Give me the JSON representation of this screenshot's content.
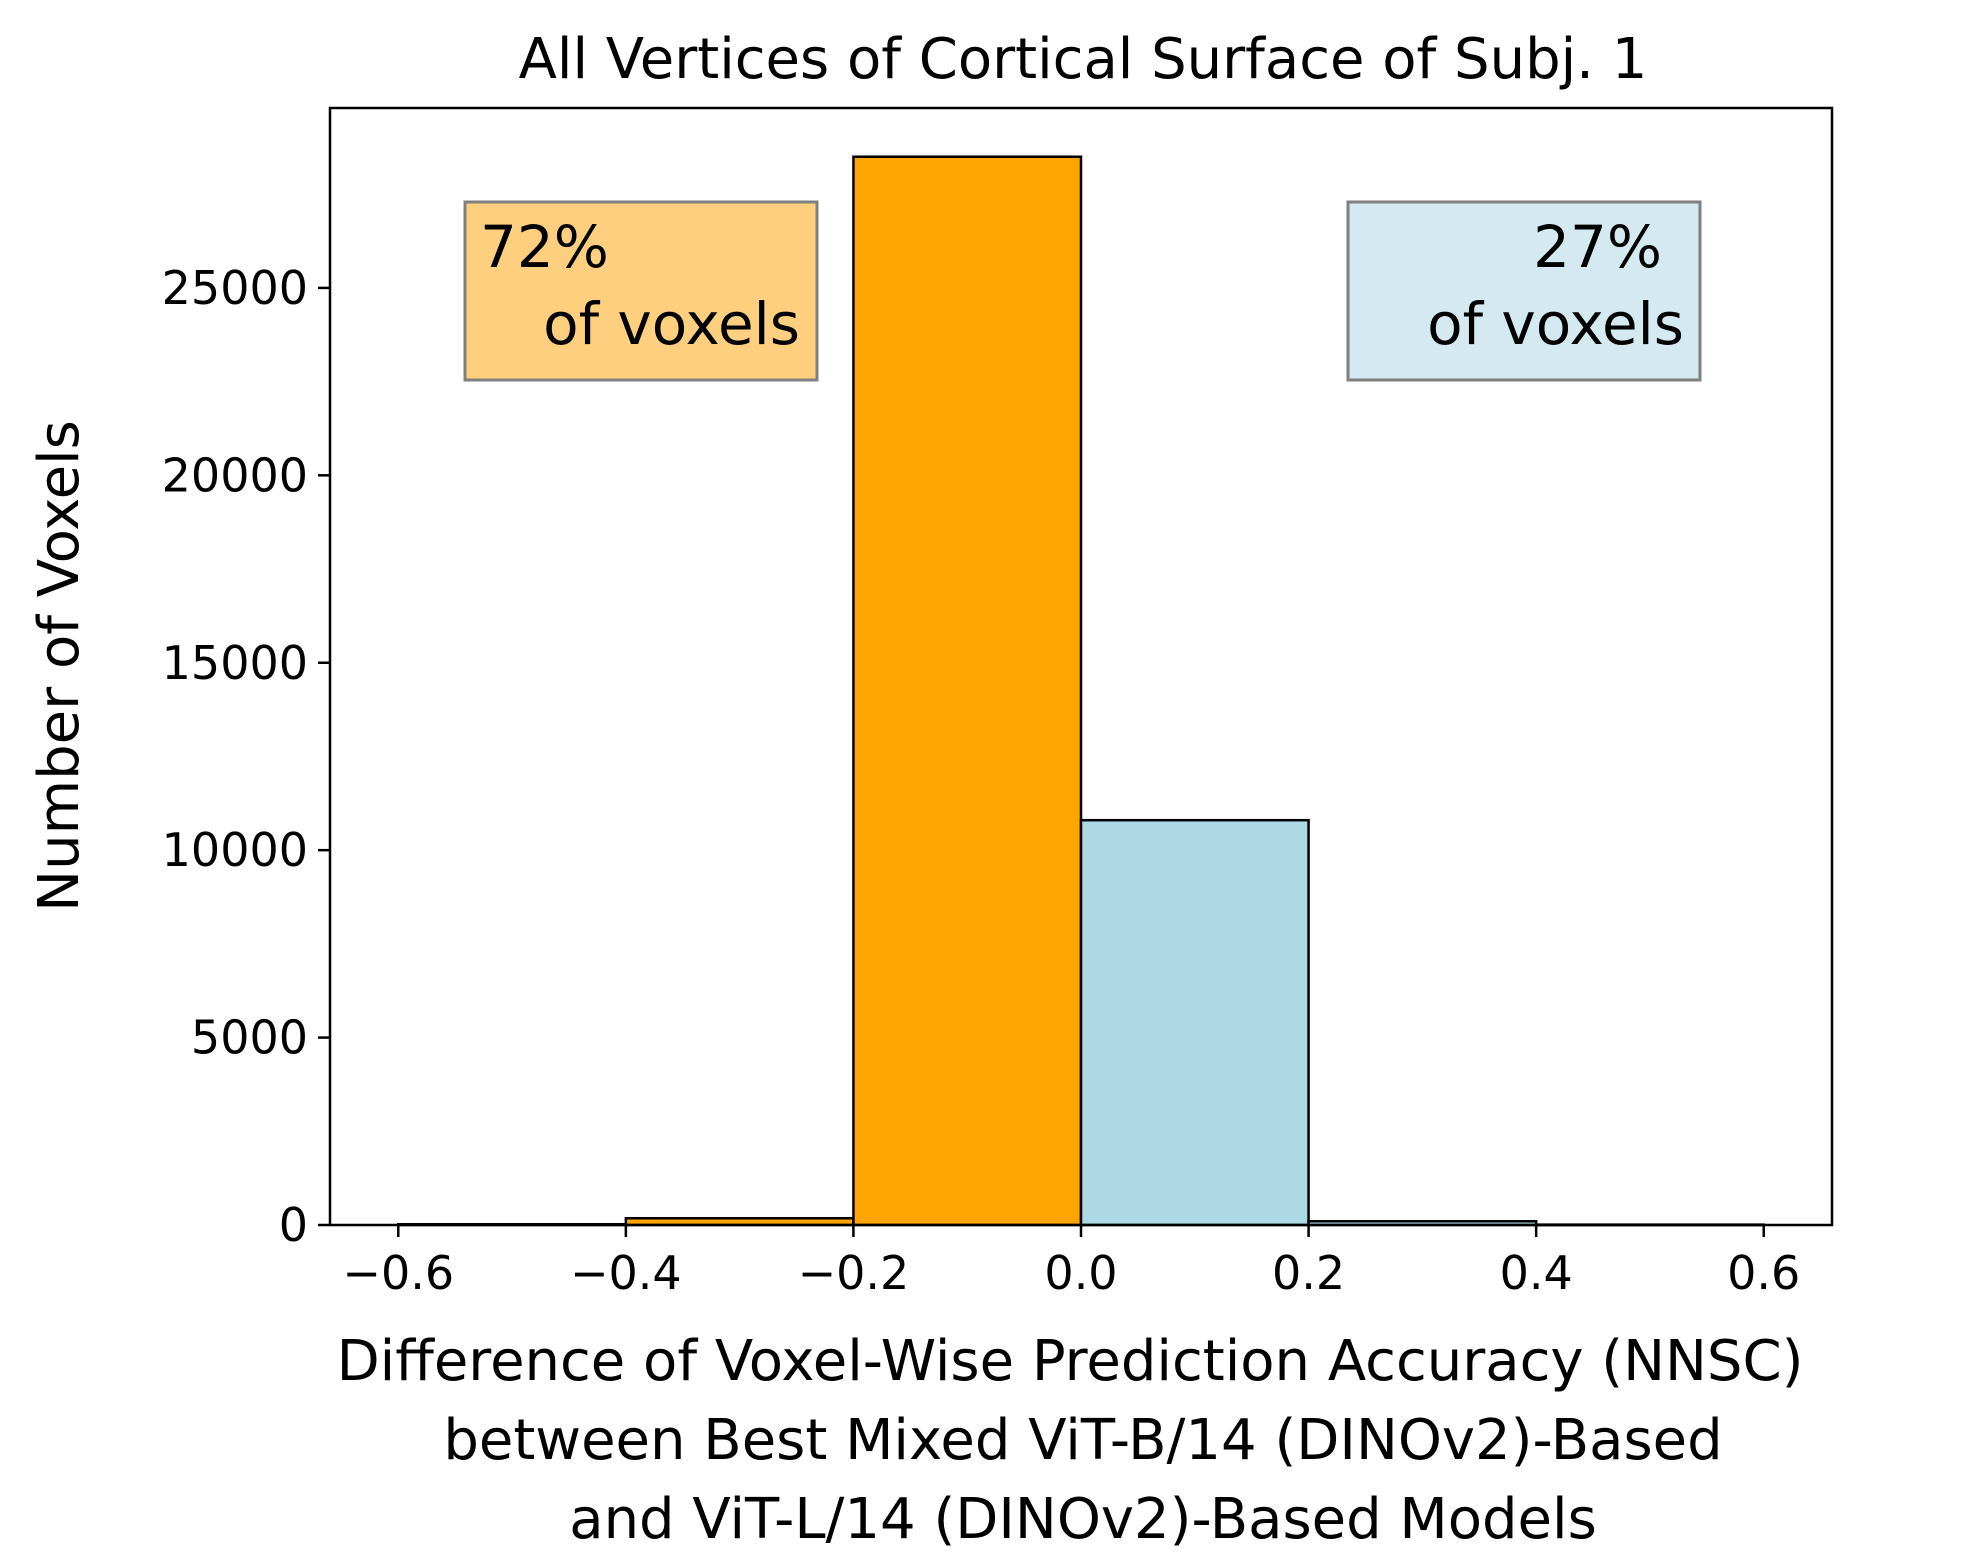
{
  "chart_data": {
    "type": "bar",
    "title": "All Vertices of Cortical Surface of Subj. 1",
    "xlabel_lines": [
      "Difference of Voxel-Wise Prediction Accuracy (NNSC)",
      "between Best Mixed ViT-B/14 (DINOv2)-Based",
      "and ViT-L/14 (DINOv2)-Based Models"
    ],
    "ylabel": "Number of Voxels",
    "xlim": [
      -0.66,
      0.66
    ],
    "ylim": [
      0,
      29800
    ],
    "xticks": [
      -0.6,
      -0.4,
      -0.2,
      0.0,
      0.2,
      0.4,
      0.6
    ],
    "xtick_labels": [
      "−0.6",
      "−0.4",
      "−0.2",
      "0.0",
      "0.2",
      "0.4",
      "0.6"
    ],
    "yticks": [
      0,
      5000,
      10000,
      15000,
      20000,
      25000
    ],
    "ytick_labels": [
      "0",
      "5000",
      "10000",
      "15000",
      "20000",
      "25000"
    ],
    "bins": [
      {
        "x0": -0.6,
        "x1": -0.4,
        "value": 20,
        "color": "#ffa500"
      },
      {
        "x0": -0.4,
        "x1": -0.2,
        "value": 180,
        "color": "#ffa500"
      },
      {
        "x0": -0.2,
        "x1": 0.0,
        "value": 28500,
        "color": "#ffa500"
      },
      {
        "x0": 0.0,
        "x1": 0.2,
        "value": 10800,
        "color": "#add8e6"
      },
      {
        "x0": 0.2,
        "x1": 0.4,
        "value": 100,
        "color": "#add8e6"
      },
      {
        "x0": 0.4,
        "x1": 0.6,
        "value": 10,
        "color": "#add8e6"
      }
    ],
    "annotations": [
      {
        "lines": [
          "72%",
          "of voxels"
        ],
        "color": "#ffcf80",
        "position": "top-left"
      },
      {
        "lines": [
          "27%",
          "of voxels"
        ],
        "color": "#d4eaf0",
        "position": "top-right"
      }
    ]
  }
}
